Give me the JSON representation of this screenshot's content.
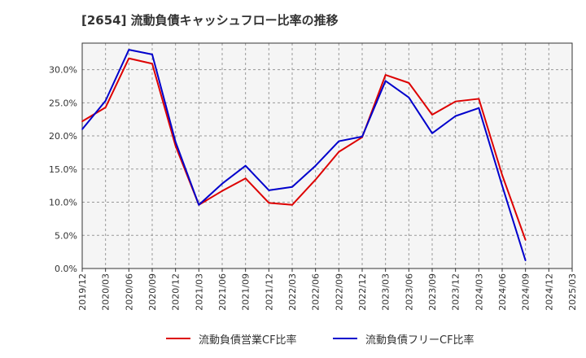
{
  "title": "[2654]  流動負債キャッシュフロー比率の推移",
  "colors": {
    "operating": "#dd0000",
    "free": "#0000cc",
    "grid": "#999999",
    "plot_bg": "#f5f5f5"
  },
  "chart_data": {
    "type": "line",
    "title": "[2654]  流動負債キャッシュフロー比率の推移",
    "xlabel": "",
    "ylabel": "",
    "x": [
      "2019/12",
      "2020/03",
      "2020/06",
      "2020/09",
      "2020/12",
      "2021/03",
      "2021/06",
      "2021/09",
      "2021/12",
      "2022/03",
      "2022/06",
      "2022/09",
      "2022/12",
      "2023/03",
      "2023/06",
      "2023/09",
      "2023/12",
      "2024/03",
      "2024/06",
      "2024/09",
      "2024/12",
      "2025/03"
    ],
    "yticks": [
      "0.0%",
      "5.0%",
      "10.0%",
      "15.0%",
      "20.0%",
      "25.0%",
      "30.0%"
    ],
    "ylim": [
      0,
      34
    ],
    "grid": true,
    "legend_position": "bottom",
    "series": [
      {
        "name": "流動負債営業CF比率",
        "color": "#dd0000",
        "values": [
          22.2,
          24.3,
          31.7,
          30.9,
          18.5,
          9.6,
          11.7,
          13.6,
          9.9,
          9.6,
          13.4,
          17.6,
          19.8,
          29.2,
          28.0,
          23.2,
          25.2,
          25.6,
          14.1,
          4.3,
          null,
          null
        ]
      },
      {
        "name": "流動負債フリーCF比率",
        "color": "#0000cc",
        "values": [
          21.0,
          25.3,
          33.0,
          32.3,
          19.1,
          9.6,
          12.8,
          15.5,
          11.8,
          12.3,
          15.5,
          19.2,
          19.9,
          28.3,
          25.8,
          20.4,
          23.0,
          24.2,
          12.5,
          1.2,
          null,
          null
        ]
      }
    ]
  }
}
